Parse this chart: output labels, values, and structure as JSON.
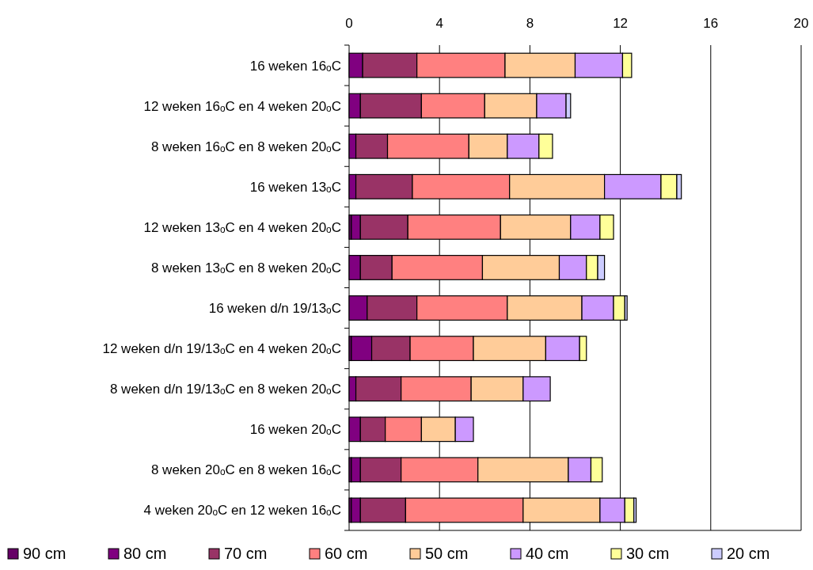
{
  "chart_data": {
    "type": "bar",
    "orientation": "horizontal",
    "stacked": true,
    "categories": [
      "16 weken 16$_{o}$C",
      "12 weken 16$_{o}$C en 4 weken 20$_{o}$C",
      "8 weken 16$_{o}$C en 8 weken 20$_{o}$C",
      "16 weken 13$_{o}$C",
      "12 weken 13$_{o}$C en 4 weken 20$_{o}$C",
      "8 weken 13$_{o}$C en 8 weken 20$_{o}$C",
      "16 weken d/n 19/13$_{o}$C",
      "12 weken d/n 19/13$_{o}$C en 4 weken 20$_{o}$C",
      "8 weken d/n 19/13$_{o}$C en 8 weken 20$_{o}$C",
      "16 weken 20$_{o}$C",
      "8 weken 20$_{o}$C en 8 weken 16$_{o}$C",
      "4 weken 20$_{o}$C en 12 weken 16$_{o}$C"
    ],
    "series": [
      {
        "name": "90 cm",
        "color": "#660066",
        "values": [
          0,
          0,
          0,
          0,
          0.1,
          0,
          0,
          0.1,
          0,
          0,
          0.1,
          0.1
        ]
      },
      {
        "name": "80 cm",
        "color": "#800080",
        "values": [
          0.6,
          0.5,
          0.3,
          0.3,
          0.4,
          0.5,
          0.8,
          0.9,
          0.3,
          0.5,
          0.4,
          0.4
        ]
      },
      {
        "name": "70 cm",
        "color": "#993366",
        "values": [
          2.4,
          2.7,
          1.4,
          2.5,
          2.1,
          1.4,
          2.2,
          1.7,
          2.0,
          1.1,
          1.8,
          2.0
        ]
      },
      {
        "name": "60 cm",
        "color": "#ff8080",
        "values": [
          3.9,
          2.8,
          3.6,
          4.3,
          4.1,
          4.0,
          4.0,
          2.8,
          3.1,
          1.6,
          3.4,
          5.2
        ]
      },
      {
        "name": "50 cm",
        "color": "#ffcc99",
        "values": [
          3.1,
          2.3,
          1.7,
          4.2,
          3.1,
          3.4,
          3.3,
          3.2,
          2.3,
          1.5,
          4.0,
          3.4
        ]
      },
      {
        "name": "40 cm",
        "color": "#cc99ff",
        "values": [
          2.1,
          1.3,
          1.4,
          2.5,
          1.3,
          1.2,
          1.4,
          1.5,
          1.2,
          0.8,
          1.0,
          1.1
        ]
      },
      {
        "name": "30 cm",
        "color": "#ffff99",
        "values": [
          0.4,
          0,
          0.6,
          0.7,
          0.6,
          0.5,
          0.5,
          0.3,
          0,
          0,
          0.5,
          0.4
        ]
      },
      {
        "name": "20 cm",
        "color": "#ccccff",
        "values": [
          0,
          0.2,
          0,
          0.2,
          0,
          0.3,
          0.1,
          0,
          0,
          0,
          0,
          0.1
        ]
      }
    ],
    "xlim": [
      0,
      20
    ],
    "xticks": [
      0,
      4,
      8,
      12,
      16,
      20
    ],
    "grid": "x",
    "legend": "bottom"
  }
}
